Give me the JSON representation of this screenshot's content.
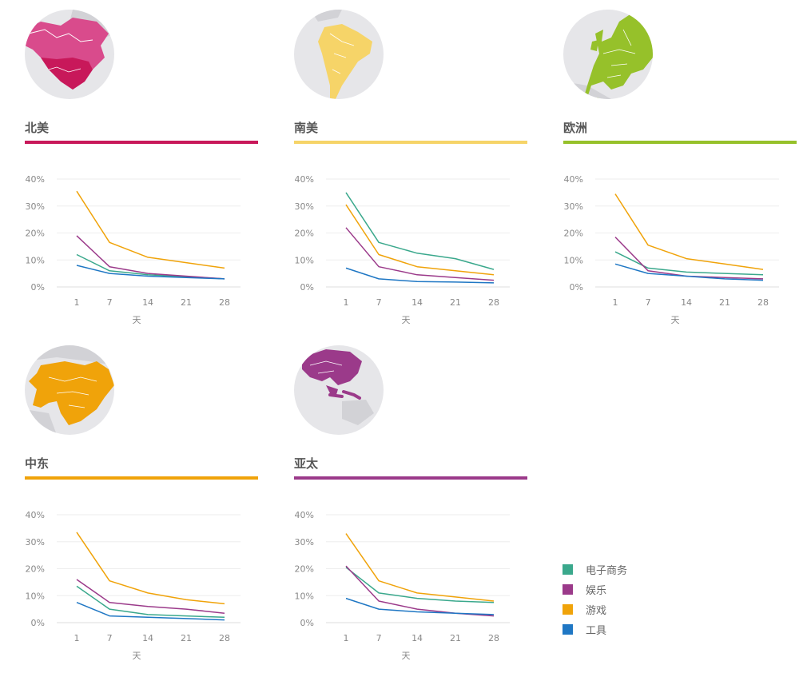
{
  "colors": {
    "ecommerce": "#3aa88c",
    "entertainment": "#9b3a8a",
    "games": "#f0a30a",
    "tools": "#1f77c4",
    "globe_bg": "#e6e6e9",
    "globe_land": "#d2d2d6"
  },
  "legend": [
    {
      "label": "电子商务",
      "color": "#3aa88c"
    },
    {
      "label": "娱乐",
      "color": "#9b3a8a"
    },
    {
      "label": "游戏",
      "color": "#f0a30a"
    },
    {
      "label": "工具",
      "color": "#1f77c4"
    }
  ],
  "regions": [
    {
      "title": "北美",
      "color": "#c8185a",
      "globe_icon": "north-america-globe-icon"
    },
    {
      "title": "南美",
      "color": "#f6d468",
      "globe_icon": "south-america-globe-icon"
    },
    {
      "title": "欧洲",
      "color": "#96c12a",
      "globe_icon": "europe-globe-icon"
    },
    {
      "title": "中东",
      "color": "#f0a30a",
      "globe_icon": "middle-east-globe-icon"
    },
    {
      "title": "亚太",
      "color": "#9b3a8a",
      "globe_icon": "asia-pacific-globe-icon"
    }
  ],
  "chart_data": [
    {
      "type": "line",
      "title": "北美",
      "xlabel": "天",
      "ylabel": "",
      "x": [
        1,
        7,
        14,
        21,
        28
      ],
      "ylim": [
        0,
        40
      ],
      "y_ticks": [
        "0%",
        "10%",
        "20%",
        "30%",
        "40%"
      ],
      "grid": true,
      "series": [
        {
          "name": "电子商务",
          "values": [
            12,
            6,
            4.5,
            3.8,
            3
          ]
        },
        {
          "name": "娱乐",
          "values": [
            19,
            7.5,
            5,
            4,
            3
          ]
        },
        {
          "name": "游戏",
          "values": [
            35.5,
            16.5,
            11,
            9,
            7
          ]
        },
        {
          "name": "工具",
          "values": [
            8,
            5,
            4,
            3.5,
            3
          ]
        }
      ]
    },
    {
      "type": "line",
      "title": "南美",
      "xlabel": "天",
      "ylabel": "",
      "x": [
        1,
        7,
        14,
        21,
        28
      ],
      "ylim": [
        0,
        40
      ],
      "y_ticks": [
        "0%",
        "10%",
        "20%",
        "30%",
        "40%"
      ],
      "grid": true,
      "series": [
        {
          "name": "电子商务",
          "values": [
            35,
            16.5,
            12.5,
            10.5,
            6.5
          ]
        },
        {
          "name": "娱乐",
          "values": [
            22,
            7.5,
            4.5,
            3.5,
            2.5
          ]
        },
        {
          "name": "游戏",
          "values": [
            30.5,
            12,
            7.5,
            6,
            4.5
          ]
        },
        {
          "name": "工具",
          "values": [
            7,
            3,
            2,
            1.8,
            1.5
          ]
        }
      ]
    },
    {
      "type": "line",
      "title": "欧洲",
      "xlabel": "天",
      "ylabel": "",
      "x": [
        1,
        7,
        14,
        21,
        28
      ],
      "ylim": [
        0,
        40
      ],
      "y_ticks": [
        "0%",
        "10%",
        "20%",
        "30%",
        "40%"
      ],
      "grid": true,
      "series": [
        {
          "name": "电子商务",
          "values": [
            13,
            7,
            5.5,
            5,
            4.5
          ]
        },
        {
          "name": "娱乐",
          "values": [
            18.5,
            6,
            4,
            3.5,
            3
          ]
        },
        {
          "name": "游戏",
          "values": [
            34.5,
            15.5,
            10.5,
            8.5,
            6.5
          ]
        },
        {
          "name": "工具",
          "values": [
            8.5,
            5,
            4,
            3,
            2.5
          ]
        }
      ]
    },
    {
      "type": "line",
      "title": "中东",
      "xlabel": "天",
      "ylabel": "",
      "x": [
        1,
        7,
        14,
        21,
        28
      ],
      "ylim": [
        0,
        40
      ],
      "y_ticks": [
        "0%",
        "10%",
        "20%",
        "30%",
        "40%"
      ],
      "grid": true,
      "series": [
        {
          "name": "电子商务",
          "values": [
            13.5,
            5,
            3,
            2.5,
            2
          ]
        },
        {
          "name": "娱乐",
          "values": [
            16,
            7.5,
            6,
            5,
            3.5
          ]
        },
        {
          "name": "游戏",
          "values": [
            33.5,
            15.5,
            11,
            8.5,
            7
          ]
        },
        {
          "name": "工具",
          "values": [
            7.5,
            2.5,
            2,
            1.5,
            1
          ]
        }
      ]
    },
    {
      "type": "line",
      "title": "亚太",
      "xlabel": "天",
      "ylabel": "",
      "x": [
        1,
        7,
        14,
        21,
        28
      ],
      "ylim": [
        0,
        40
      ],
      "y_ticks": [
        "0%",
        "10%",
        "20%",
        "30%",
        "40%"
      ],
      "grid": true,
      "series": [
        {
          "name": "电子商务",
          "values": [
            20.5,
            11,
            9,
            8,
            7.5
          ]
        },
        {
          "name": "娱乐",
          "values": [
            21,
            8,
            5,
            3.5,
            2.5
          ]
        },
        {
          "name": "游戏",
          "values": [
            33,
            15.5,
            11,
            9.5,
            8
          ]
        },
        {
          "name": "工具",
          "values": [
            9,
            5,
            4,
            3.5,
            3
          ]
        }
      ]
    }
  ]
}
